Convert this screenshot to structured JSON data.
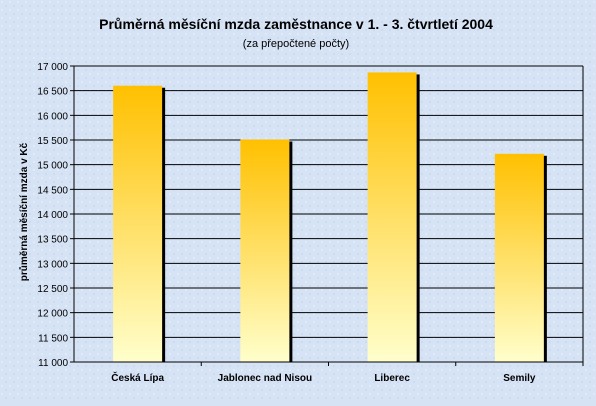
{
  "chart_data": {
    "type": "bar",
    "title": "Průměrná měsíční mzda zaměstnance v 1. - 3. čtvrtletí 2004",
    "subtitle": "(za přepočtené počty)",
    "xlabel": "",
    "ylabel": "průměrná měsíční mzda v Kč",
    "categories": [
      "Česká Lípa",
      "Jablonec nad Nisou",
      "Liberec",
      "Semily"
    ],
    "values": [
      16600,
      15510,
      16870,
      15220
    ],
    "ylim": [
      11000,
      17000
    ],
    "yticks": [
      11000,
      11500,
      12000,
      12500,
      13000,
      13500,
      14000,
      14500,
      15000,
      15500,
      16000,
      16500,
      17000
    ],
    "ytick_labels": [
      "11 000",
      "11 500",
      "12 000",
      "12 500",
      "13 000",
      "13 500",
      "14 000",
      "14 500",
      "15 000",
      "15 500",
      "16 000",
      "16 500",
      "17 000"
    ],
    "grid": true,
    "legend": "none",
    "colors": {
      "background": "#d6e3f5",
      "bar_top": "#ffc000",
      "bar_bottom": "#ffffcc",
      "bar_shadow": "#000000",
      "grid": "#000000"
    }
  }
}
